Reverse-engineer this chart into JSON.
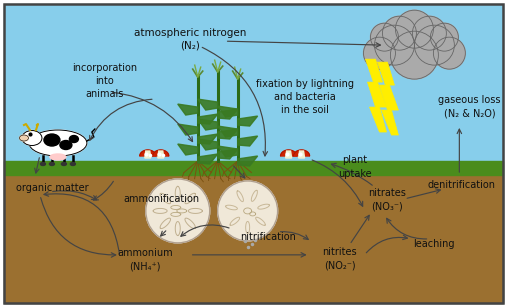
{
  "bg_sky": "#87CEEB",
  "bg_ground": "#9B7030",
  "bg_grass": "#4A8C1C",
  "border_color": "#444444",
  "arrow_color": "#444444",
  "text_color": "#111111",
  "cloud_color": "#AAAAAA",
  "cloud_edge": "#666666",
  "lightning_color": "#FFEE00",
  "circle1_color": "#F0E8D8",
  "circle2_color": "#F0E8D8",
  "labels": {
    "atm_nitrogen": "atmospheric nitrogen\n(N₂)",
    "incorporation": "incorporation\ninto\nanimals",
    "fixation": "fixation by lightning\nand bacteria\nin the soil",
    "gaseous_loss": "gaseous loss\n(N₂ & N₂O)",
    "organic_matter": "organic matter",
    "ammonification": "ammonification",
    "ammonium": "ammonium\n(NH₄⁺)",
    "nitrification": "nitrification",
    "nitrites": "nitrites\n(NO₂⁻)",
    "nitrates": "nitrates\n(NO₃⁻)",
    "plant_uptake": "plant\nuptake",
    "denitrification": "denitrification",
    "leaching": "leaching"
  },
  "fig_width": 5.08,
  "fig_height": 3.07,
  "dpi": 100
}
